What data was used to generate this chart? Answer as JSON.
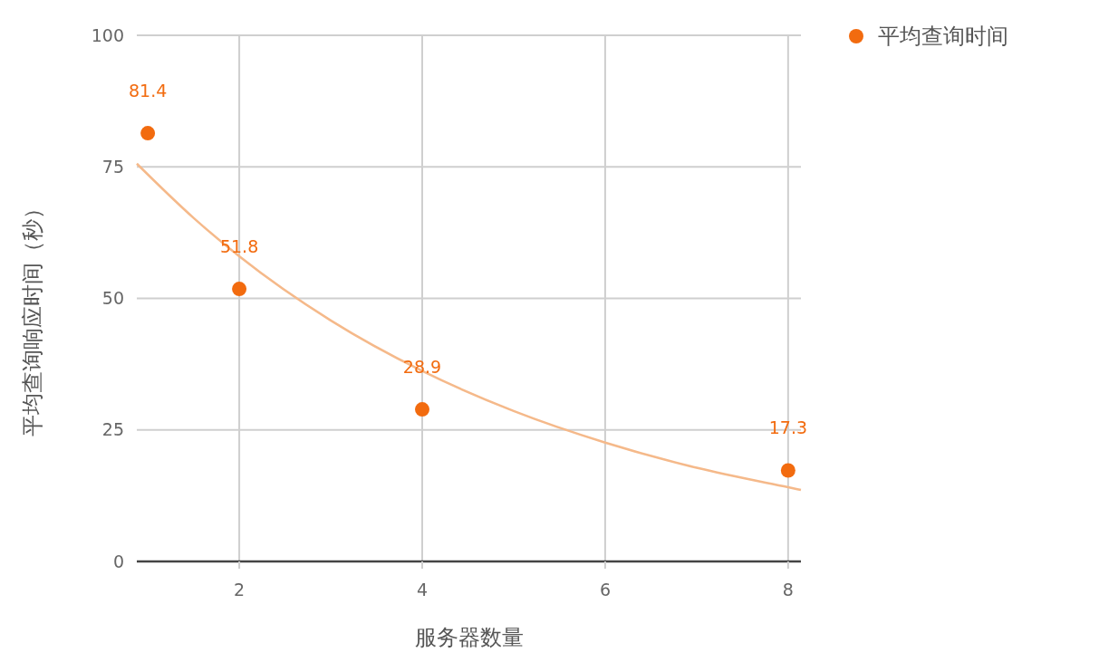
{
  "chart_data": {
    "type": "scatter",
    "xlabel": "服务器数量",
    "ylabel": "平均查询响应时间（秒）",
    "x": [
      1,
      2,
      4,
      8
    ],
    "series": [
      {
        "name": "平均查询时间",
        "color": "#f26b0f",
        "values": [
          81.4,
          51.8,
          28.9,
          17.3
        ],
        "value_labels": [
          "81.4",
          "51.8",
          "28.9",
          "17.3"
        ]
      },
      {
        "type": "line",
        "marker": "none",
        "color": "#f5b98a",
        "x": [
          0.88,
          1.5,
          2,
          3,
          4,
          5,
          6,
          7,
          8,
          8.14
        ],
        "values": [
          75.6,
          65.3,
          58.0,
          45.8,
          36.2,
          28.6,
          22.6,
          17.8,
          14.1,
          13.6
        ]
      }
    ],
    "xlim": [
      0.88,
      8.14
    ],
    "xticks": [
      2,
      4,
      6,
      8
    ],
    "ylim": [
      0,
      100
    ],
    "yticks": [
      0,
      25,
      50,
      75,
      100
    ],
    "grid": true,
    "legend": "top right",
    "marker": "circle",
    "line_style": "solid"
  }
}
